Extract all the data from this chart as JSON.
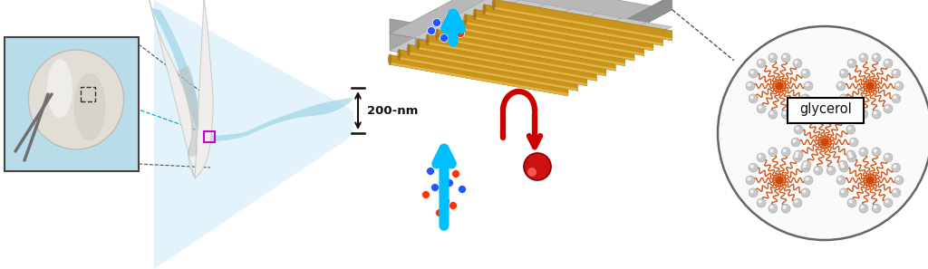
{
  "bg_color": "#ffffff",
  "label_200nm": "200-nm",
  "label_glycerol": "glycerol",
  "arrow_blue": "#00BFFF",
  "arrow_red": "#CC0000",
  "rod_color_top": "#E8B84B",
  "rod_color_mid": "#C8941A",
  "rod_color_bot": "#A07010",
  "support_color": "#AAAAAA",
  "support_light": "#CCCCCC",
  "support_dark": "#888888",
  "glycerol_sphere_color": "#C8C8C8",
  "glycerol_line_color": "#CC4400",
  "small_dot_blue": "#2255FF",
  "small_dot_red": "#FF3300",
  "beam_color": "#C8E8F8",
  "photo_bg": "#B8DCE8"
}
